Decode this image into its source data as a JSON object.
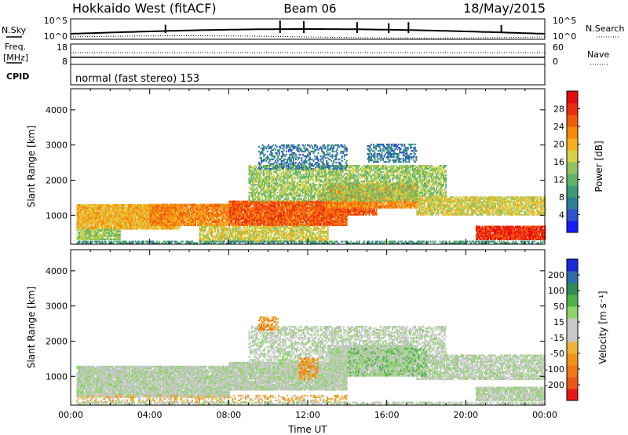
{
  "header": {
    "station": "Hokkaido West (fitACF)",
    "beam": "Beam 06",
    "date": "18/May/2015"
  },
  "status_panel": {
    "left_label_top": "N.Sky",
    "left_tick_top": "10^5",
    "left_tick_bottom": "10^0",
    "right_tick_top": "10^5",
    "right_tick_bottom": "10^0",
    "right_label": "N.Search"
  },
  "freq_panel": {
    "left_label_line1": "Freq.",
    "left_label_line2": "[MHz]",
    "left_tick_top": "18",
    "left_tick_bottom": "8",
    "right_tick_top": "60",
    "right_tick_bottom": "0",
    "right_label": "Nave"
  },
  "cpid_panel": {
    "label": "CPID",
    "text": "normal (fast stereo) 153"
  },
  "chart_data": [
    {
      "type": "heatmap",
      "name": "power-panel",
      "ylabel": "Slant Range [km]",
      "xlabel": "",
      "ylim": [
        180,
        4600
      ],
      "yticks": [
        "1000",
        "2000",
        "3000",
        "4000"
      ],
      "colorbar": {
        "label": "Power [dB]",
        "ticks": [
          "4",
          "8",
          "12",
          "16",
          "20",
          "24",
          "28"
        ],
        "colors": [
          "#1a1aff",
          "#2f54c8",
          "#2f7e96",
          "#3c9a74",
          "#5fb46a",
          "#8fc25c",
          "#d8d24a",
          "#f6b020",
          "#f8880a",
          "#f45a0c",
          "#ee2a10",
          "#e20c0c"
        ]
      },
      "scatter_regions": [
        {
          "t0": 0.3,
          "t1": 5.5,
          "r0": 600,
          "r1": 1300,
          "level": 7,
          "density": 0.95
        },
        {
          "t0": 0.3,
          "t1": 2.5,
          "r0": 300,
          "r1": 600,
          "level": 5,
          "density": 0.9
        },
        {
          "t0": 4.0,
          "t1": 8.0,
          "r0": 700,
          "r1": 1300,
          "level": 8,
          "density": 0.92
        },
        {
          "t0": 8.0,
          "t1": 14.0,
          "r0": 700,
          "r1": 1400,
          "level": 9,
          "density": 0.95
        },
        {
          "t0": 12.5,
          "t1": 15.5,
          "r0": 1000,
          "r1": 1600,
          "level": 9,
          "density": 0.9
        },
        {
          "t0": 13.0,
          "t1": 17.5,
          "r0": 1200,
          "r1": 1900,
          "level": 8,
          "density": 0.9
        },
        {
          "t0": 9.0,
          "t1": 19.0,
          "r0": 1400,
          "r1": 2400,
          "level": 5,
          "density": 0.7
        },
        {
          "t0": 9.5,
          "t1": 14.0,
          "r0": 2300,
          "r1": 3000,
          "level": 2,
          "density": 0.45
        },
        {
          "t0": 15.0,
          "t1": 17.5,
          "r0": 2500,
          "r1": 3000,
          "level": 2,
          "density": 0.5
        },
        {
          "t0": 17.5,
          "t1": 24.0,
          "r0": 1000,
          "r1": 1500,
          "level": 6,
          "density": 0.8
        },
        {
          "t0": 20.5,
          "t1": 24.0,
          "r0": 300,
          "r1": 700,
          "level": 10,
          "density": 0.96
        },
        {
          "t0": 6.5,
          "t1": 13.0,
          "r0": 250,
          "r1": 700,
          "level": 6,
          "density": 0.75
        },
        {
          "t0": 0.3,
          "t1": 24.0,
          "r0": 190,
          "r1": 260,
          "level": 3,
          "density": 0.6
        }
      ]
    },
    {
      "type": "heatmap",
      "name": "velocity-panel",
      "ylabel": "Slant Range [km]",
      "xlabel": "Time UT",
      "ylim": [
        180,
        4600
      ],
      "yticks": [
        "1000",
        "2000",
        "3000",
        "4000"
      ],
      "xticks": [
        "00:00",
        "04:00",
        "08:00",
        "12:00",
        "16:00",
        "20:00",
        "00:00"
      ],
      "colorbar": {
        "label": "Velocity [m s⁻¹]",
        "ticks": [
          "200",
          "100",
          "50",
          "15",
          "-15",
          "-50",
          "-100",
          "-200"
        ],
        "colors": [
          "#1a2ad8",
          "#2f6ea6",
          "#2f8a5a",
          "#4fb04a",
          "#8ed46a",
          "#c8c8c8",
          "#c8c8c8",
          "#f0b43a",
          "#f09418",
          "#f07818",
          "#f05414",
          "#e81818"
        ]
      },
      "scatter_regions": [
        {
          "t0": 0.3,
          "t1": 8.0,
          "r0": 400,
          "r1": 1300,
          "level": 5,
          "density": 0.95
        },
        {
          "t0": 8.0,
          "t1": 14.0,
          "r0": 600,
          "r1": 1400,
          "level": 5,
          "density": 0.95
        },
        {
          "t0": 13.0,
          "t1": 17.5,
          "r0": 1000,
          "r1": 1900,
          "level": 5,
          "density": 0.9
        },
        {
          "t0": 9.0,
          "t1": 19.0,
          "r0": 1400,
          "r1": 2400,
          "level": 5,
          "density": 0.55
        },
        {
          "t0": 17.5,
          "t1": 24.0,
          "r0": 900,
          "r1": 1600,
          "level": 5,
          "density": 0.75
        },
        {
          "t0": 20.5,
          "t1": 24.0,
          "r0": 300,
          "r1": 700,
          "level": 5,
          "density": 0.85
        },
        {
          "t0": 14.0,
          "t1": 18.0,
          "r0": 1000,
          "r1": 1800,
          "level": 4,
          "density": 0.5
        },
        {
          "t0": 9.5,
          "t1": 10.5,
          "r0": 2300,
          "r1": 2700,
          "level": 8,
          "density": 0.6
        },
        {
          "t0": 11.5,
          "t1": 12.5,
          "r0": 900,
          "r1": 1500,
          "level": 8,
          "density": 0.6
        },
        {
          "t0": 0.3,
          "t1": 14.0,
          "r0": 250,
          "r1": 450,
          "level": 7,
          "density": 0.35
        },
        {
          "t0": 0.3,
          "t1": 24.0,
          "r0": 190,
          "r1": 260,
          "level": 5,
          "density": 0.6
        }
      ]
    }
  ]
}
